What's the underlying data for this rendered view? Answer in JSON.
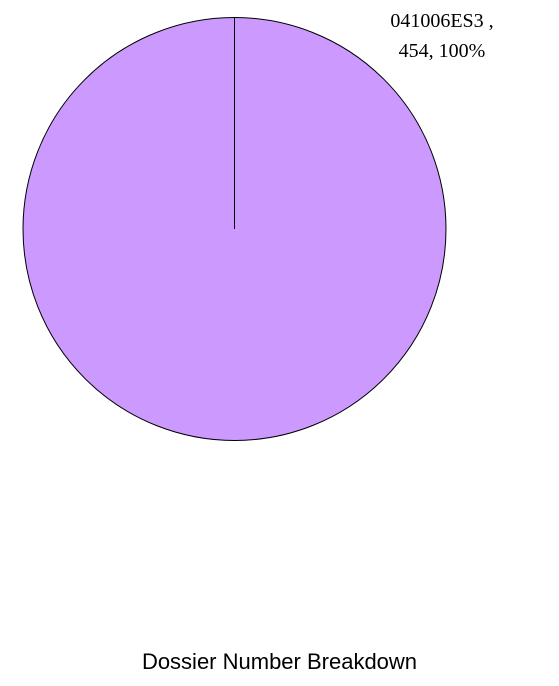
{
  "chart_data": {
    "type": "pie",
    "title": "Dossier Number Breakdown",
    "slices": [
      {
        "label": "041006ES3",
        "value": 454,
        "percent": "100%",
        "color": "#cc99ff",
        "label_line1": "041006ES3 ,",
        "label_line2": "454, 100%"
      }
    ],
    "legend": "none"
  }
}
